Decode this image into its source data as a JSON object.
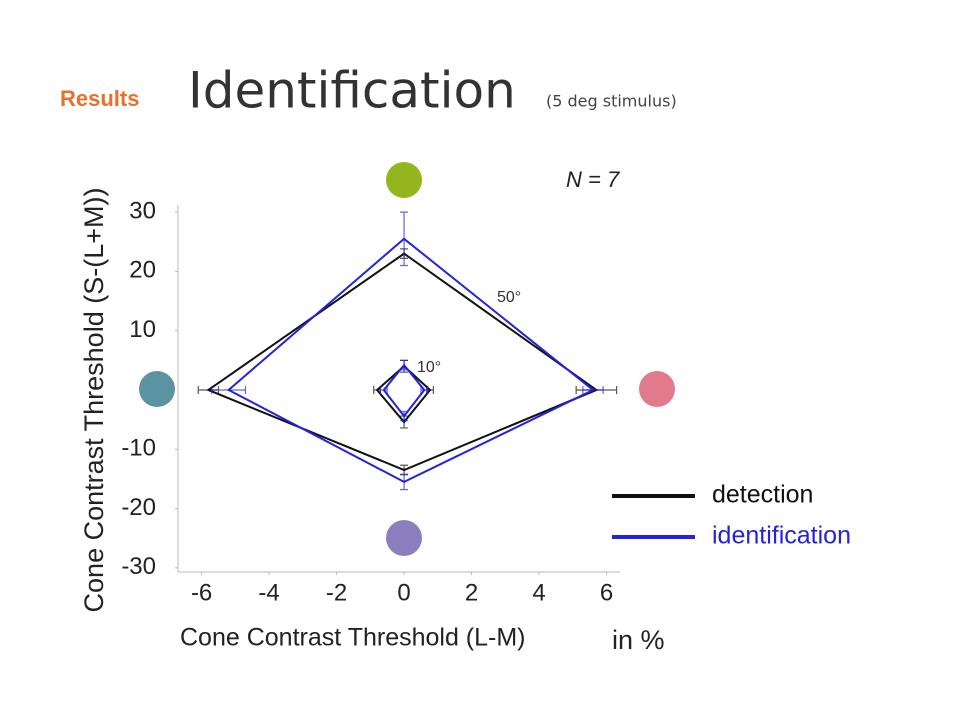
{
  "header": {
    "section": "Results",
    "title": "Identification",
    "subtitle": "(5 deg stimulus)"
  },
  "chart_data": {
    "type": "line",
    "ylabel": "Cone Contrast Threshold (S-(L+M))",
    "xlabel": "Cone Contrast Threshold (L-M)",
    "unit_note": "in %",
    "annotations": [
      "N = 7",
      "50°",
      "10°"
    ],
    "xlim": [
      -6.7,
      6.4
    ],
    "ylim": [
      -30.7,
      31.2
    ],
    "xticks": [
      -6,
      -4,
      -2,
      0,
      2,
      4,
      6
    ],
    "yticks": [
      30,
      20,
      10,
      -10,
      -20,
      -30
    ],
    "series": [
      {
        "name": "detection",
        "color": "#111111",
        "x": [
          -5.8,
          0,
          5.7,
          0
        ],
        "y": [
          0,
          23,
          0,
          -13.5
        ],
        "errors": [
          0.3,
          0.8,
          0.6,
          0.8
        ]
      },
      {
        "name": "identification",
        "color": "#2323dd",
        "x": [
          -5.2,
          0,
          5.6,
          0
        ],
        "y": [
          0,
          25.5,
          0,
          -15.5
        ],
        "errors": [
          0.5,
          4.5,
          0.3,
          1.3
        ]
      },
      {
        "name": "detection",
        "color": "#111111",
        "x": [
          -0.8,
          0,
          0.77,
          0
        ],
        "y": [
          0,
          4,
          0,
          -5.4
        ],
        "errors": [
          0.1,
          1,
          0.1,
          1
        ]
      },
      {
        "name": "identification",
        "color": "#2323dd",
        "x": [
          -0.6,
          0,
          0.6,
          0
        ],
        "y": [
          0,
          4.2,
          0,
          -4.4
        ],
        "errors": [
          0.1,
          0.8,
          0.1,
          0.8
        ]
      }
    ]
  }
}
